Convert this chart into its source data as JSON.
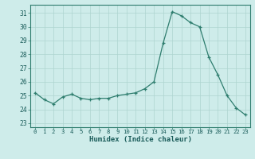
{
  "x": [
    0,
    1,
    2,
    3,
    4,
    5,
    6,
    7,
    8,
    9,
    10,
    11,
    12,
    13,
    14,
    15,
    16,
    17,
    18,
    19,
    20,
    21,
    22,
    23
  ],
  "y_values": [
    25.2,
    24.7,
    24.4,
    24.9,
    25.1,
    24.8,
    24.7,
    24.8,
    24.8,
    25.0,
    25.1,
    25.2,
    25.5,
    26.0,
    28.8,
    31.1,
    30.8,
    30.3,
    30.0,
    27.8,
    26.5,
    25.0,
    24.1,
    23.6
  ],
  "ylim": [
    22.7,
    31.6
  ],
  "yticks": [
    23,
    24,
    25,
    26,
    27,
    28,
    29,
    30,
    31
  ],
  "xlabel": "Humidex (Indice chaleur)",
  "line_color": "#2e7d6e",
  "marker_color": "#2e7d6e",
  "bg_color": "#ceecea",
  "grid_color": "#aed4d0",
  "spine_color": "#2e7d6e",
  "tick_color": "#1a5c5a",
  "label_color": "#1a5c5a"
}
